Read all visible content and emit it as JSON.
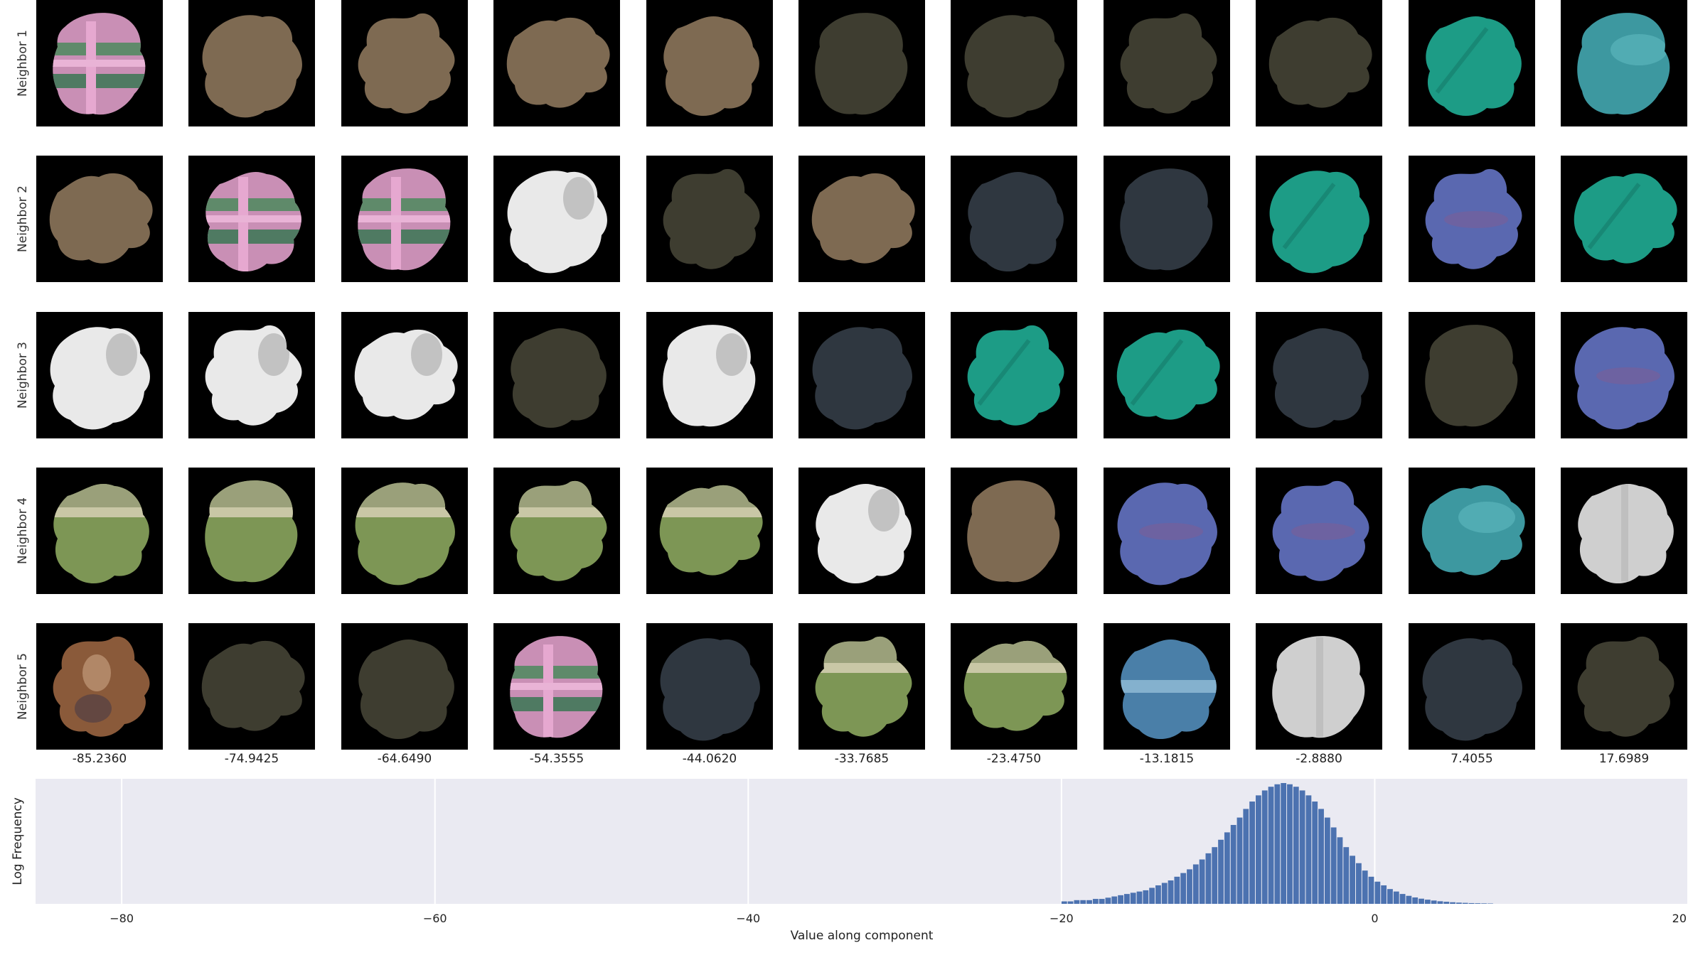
{
  "row_labels": [
    "Neighbor 1",
    "Neighbor 2",
    "Neighbor 3",
    "Neighbor 4",
    "Neighbor 5"
  ],
  "column_values": [
    "-85.2360",
    "-74.9425",
    "-64.6490",
    "-54.3555",
    "-44.0620",
    "-33.7685",
    "-23.4750",
    "-13.1815",
    "-2.8880",
    "7.4055",
    "17.6989"
  ],
  "patch_colors": {
    "pink-knit": "#c98fb5",
    "brown": "#7e6a52",
    "dark-olive": "#3e3d30",
    "dark-slate": "#2f3740",
    "teal": "#1d9c86",
    "blue-purple": "#5a68b0",
    "white": "#e9e9e9",
    "light-gray": "#cfcfcf",
    "grass": "#7d9655",
    "sky-blue": "#4a7fa8",
    "cow-brown": "#8a5a3a",
    "teal-blue": "#3d98a0"
  },
  "grid": [
    [
      "pink-knit",
      "brown",
      "brown",
      "brown",
      "brown",
      "dark-olive",
      "dark-olive",
      "dark-olive",
      "dark-olive",
      "teal",
      "teal-blue"
    ],
    [
      "brown",
      "pink-knit",
      "pink-knit",
      "white",
      "dark-olive",
      "brown",
      "dark-slate",
      "dark-slate",
      "teal",
      "blue-purple",
      "teal"
    ],
    [
      "white",
      "white",
      "white",
      "dark-olive",
      "white",
      "dark-slate",
      "teal",
      "teal",
      "dark-slate",
      "dark-olive",
      "blue-purple"
    ],
    [
      "grass",
      "grass",
      "grass",
      "grass",
      "grass",
      "white",
      "brown",
      "blue-purple",
      "blue-purple",
      "teal-blue",
      "light-gray"
    ],
    [
      "cow-brown",
      "dark-olive",
      "dark-olive",
      "pink-knit",
      "dark-slate",
      "grass",
      "grass",
      "sky-blue",
      "light-gray",
      "dark-slate",
      "dark-olive"
    ]
  ],
  "chart_data": {
    "type": "bar",
    "xlabel": "Value along component",
    "ylabel": "Log Frequency",
    "xlim": [
      -85.5,
      20
    ],
    "xticks": [
      -80,
      -60,
      -40,
      -20,
      0,
      20
    ],
    "xtick_labels": [
      "−80",
      "−60",
      "−40",
      "−20",
      "0",
      "20"
    ],
    "grid": true,
    "bar_color": "#4c72b0",
    "background": "#eaeaf2",
    "bin_width": 0.4,
    "x": [
      -19.8,
      -19.4,
      -19.0,
      -18.6,
      -18.2,
      -17.8,
      -17.4,
      -17.0,
      -16.6,
      -16.2,
      -15.8,
      -15.4,
      -15.0,
      -14.6,
      -14.2,
      -13.8,
      -13.4,
      -13.0,
      -12.6,
      -12.2,
      -11.8,
      -11.4,
      -11.0,
      -10.6,
      -10.2,
      -9.8,
      -9.4,
      -9.0,
      -8.6,
      -8.2,
      -7.8,
      -7.4,
      -7.0,
      -6.6,
      -6.2,
      -5.8,
      -5.4,
      -5.0,
      -4.6,
      -4.2,
      -3.8,
      -3.4,
      -3.0,
      -2.6,
      -2.2,
      -1.8,
      -1.4,
      -1.0,
      -0.6,
      -0.2,
      0.2,
      0.6,
      1.0,
      1.4,
      1.8,
      2.2,
      2.6,
      3.0,
      3.4,
      3.8,
      4.2,
      4.6,
      5.0,
      5.4,
      5.8,
      6.2,
      6.6,
      7.0,
      7.4
    ],
    "values": [
      0.02,
      0.02,
      0.03,
      0.03,
      0.03,
      0.04,
      0.04,
      0.05,
      0.06,
      0.07,
      0.08,
      0.09,
      0.1,
      0.11,
      0.13,
      0.15,
      0.17,
      0.19,
      0.22,
      0.25,
      0.28,
      0.32,
      0.36,
      0.41,
      0.46,
      0.52,
      0.58,
      0.64,
      0.7,
      0.77,
      0.83,
      0.88,
      0.92,
      0.95,
      0.97,
      0.98,
      0.97,
      0.95,
      0.92,
      0.88,
      0.83,
      0.77,
      0.7,
      0.62,
      0.54,
      0.46,
      0.39,
      0.33,
      0.27,
      0.22,
      0.18,
      0.15,
      0.12,
      0.1,
      0.08,
      0.065,
      0.052,
      0.042,
      0.034,
      0.027,
      0.021,
      0.017,
      0.013,
      0.01,
      0.008,
      0.006,
      0.005,
      0.004,
      0.003
    ]
  }
}
